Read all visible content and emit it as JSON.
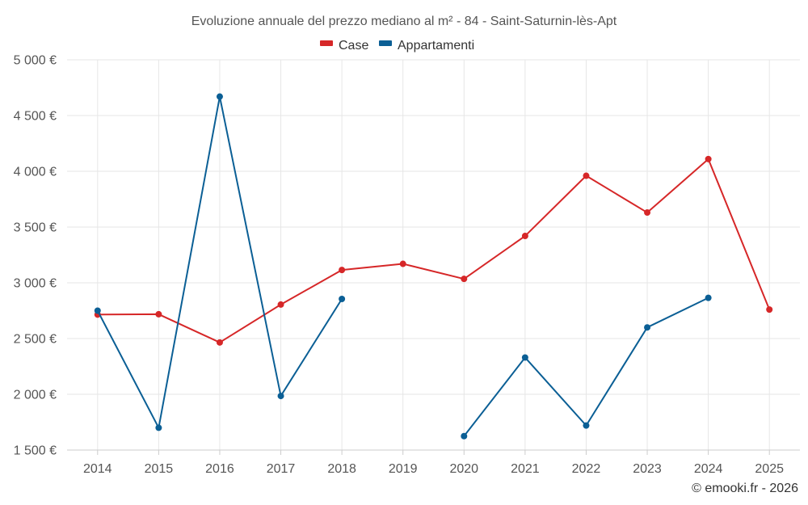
{
  "chart_data": {
    "type": "line",
    "title": "Evoluzione annuale del prezzo mediano al m² - 84 - Saint-Saturnin-lès-Apt",
    "categories": [
      "2014",
      "2015",
      "2016",
      "2017",
      "2018",
      "2019",
      "2020",
      "2021",
      "2022",
      "2023",
      "2024",
      "2025"
    ],
    "ylim": [
      1500,
      5000
    ],
    "yticks": [
      1500,
      2000,
      2500,
      3000,
      3500,
      4000,
      4500,
      5000
    ],
    "ytick_labels": [
      "1 500 €",
      "2 000 €",
      "2 500 €",
      "3 000 €",
      "3 500 €",
      "4 000 €",
      "4 500 €",
      "5 000 €"
    ],
    "xlabel": "",
    "ylabel": "",
    "grid": true,
    "legend_position": "top-center",
    "series": [
      {
        "name": "Case",
        "color": "#d62728",
        "values": [
          2715,
          2718,
          2465,
          2805,
          3115,
          3170,
          3035,
          3420,
          3960,
          3630,
          4110,
          2760
        ]
      },
      {
        "name": "Appartamenti",
        "color": "#0b5f95",
        "values": [
          2750,
          1700,
          4670,
          1985,
          2855,
          null,
          1625,
          2330,
          1720,
          2600,
          2865,
          null
        ]
      }
    ]
  },
  "credit": "© emooki.fr - 2026"
}
